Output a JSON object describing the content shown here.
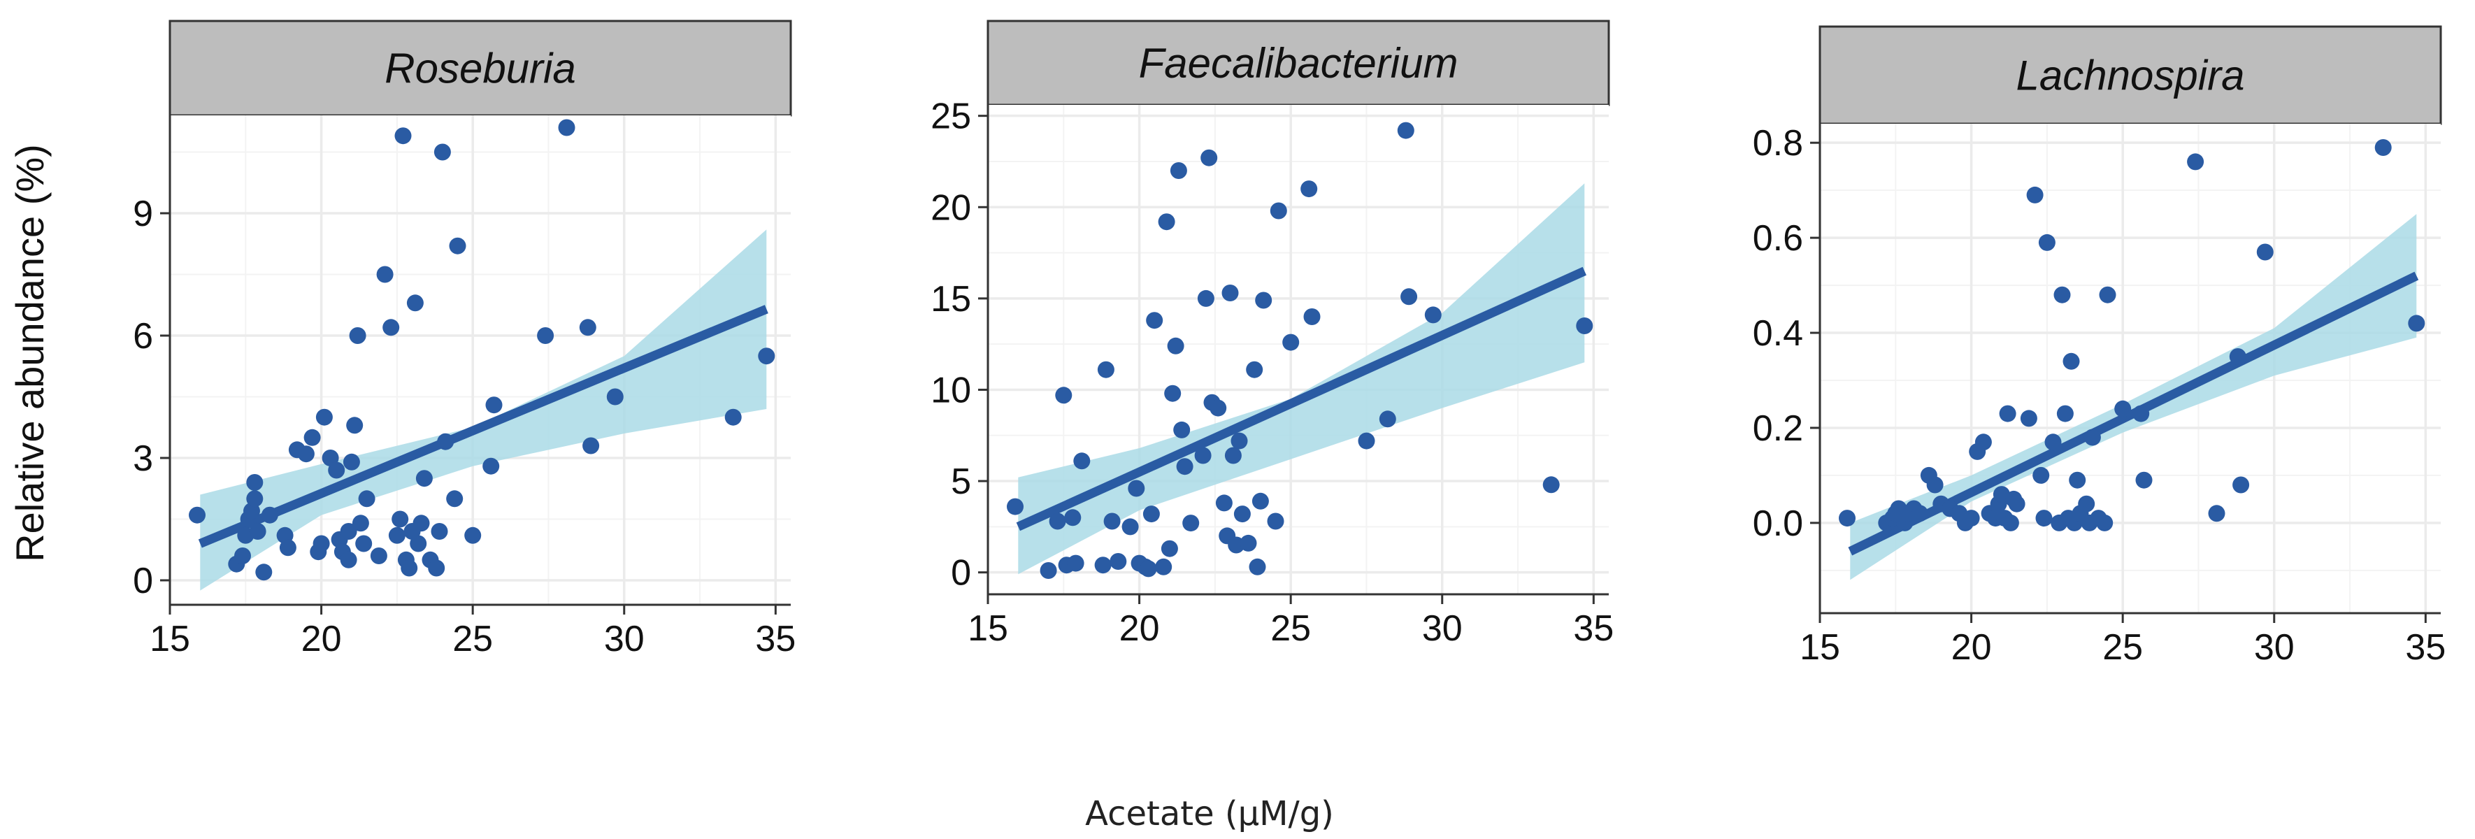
{
  "figure": {
    "ylabel": "Relative abundance (%)",
    "xlabel": "Acetate (µM/g)"
  },
  "colors": {
    "point": "#2a5ba3",
    "line": "#2a5ba3",
    "band": "#aadbe6",
    "strip": "#bdbdbd",
    "grid": "#ebebeb"
  },
  "chart_data": [
    {
      "type": "scatter",
      "title": "Roseburia",
      "xlim": [
        15,
        35.5
      ],
      "ylim": [
        -0.6,
        11.4
      ],
      "xticks": [
        15,
        20,
        25,
        30,
        35
      ],
      "yticks": [
        0,
        3,
        6,
        9
      ],
      "grid": true,
      "fit": {
        "x": [
          16,
          34.7
        ],
        "y": [
          0.9,
          6.65
        ]
      },
      "band": {
        "x": [
          16,
          20,
          25,
          30,
          34.7
        ],
        "upper": [
          2.1,
          2.85,
          3.75,
          5.5,
          8.6
        ],
        "lower": [
          -0.25,
          1.6,
          2.8,
          3.6,
          4.2
        ]
      },
      "points": [
        [
          15.9,
          1.6
        ],
        [
          17.2,
          0.4
        ],
        [
          17.4,
          0.6
        ],
        [
          17.5,
          1.1
        ],
        [
          17.6,
          1.5
        ],
        [
          17.7,
          1.7
        ],
        [
          17.8,
          2.4
        ],
        [
          17.8,
          2.0
        ],
        [
          17.9,
          1.2
        ],
        [
          18.1,
          0.2
        ],
        [
          18.3,
          1.6
        ],
        [
          18.8,
          1.1
        ],
        [
          18.9,
          0.8
        ],
        [
          19.2,
          3.2
        ],
        [
          19.5,
          3.1
        ],
        [
          19.7,
          3.5
        ],
        [
          19.9,
          0.7
        ],
        [
          20.0,
          0.9
        ],
        [
          20.1,
          4.0
        ],
        [
          20.3,
          3.0
        ],
        [
          20.5,
          2.7
        ],
        [
          20.6,
          1.0
        ],
        [
          20.7,
          0.7
        ],
        [
          20.9,
          0.5
        ],
        [
          20.9,
          1.2
        ],
        [
          21.0,
          2.9
        ],
        [
          21.1,
          3.8
        ],
        [
          21.2,
          6.0
        ],
        [
          21.3,
          1.4
        ],
        [
          21.4,
          0.9
        ],
        [
          21.5,
          2.0
        ],
        [
          21.9,
          0.6
        ],
        [
          22.1,
          7.5
        ],
        [
          22.3,
          6.2
        ],
        [
          22.5,
          1.1
        ],
        [
          22.6,
          1.5
        ],
        [
          22.7,
          10.9
        ],
        [
          22.8,
          0.5
        ],
        [
          22.9,
          0.3
        ],
        [
          23.0,
          1.2
        ],
        [
          23.1,
          6.8
        ],
        [
          23.2,
          0.9
        ],
        [
          23.3,
          1.4
        ],
        [
          23.4,
          2.5
        ],
        [
          23.6,
          0.5
        ],
        [
          23.8,
          0.3
        ],
        [
          23.9,
          1.2
        ],
        [
          24.0,
          10.5
        ],
        [
          24.1,
          3.4
        ],
        [
          24.4,
          2.0
        ],
        [
          24.5,
          8.2
        ],
        [
          25.0,
          1.1
        ],
        [
          25.6,
          2.8
        ],
        [
          25.7,
          4.3
        ],
        [
          27.4,
          6.0
        ],
        [
          28.1,
          11.1
        ],
        [
          28.8,
          6.2
        ],
        [
          28.9,
          3.3
        ],
        [
          29.7,
          4.5
        ],
        [
          33.6,
          4.0
        ],
        [
          34.7,
          5.5
        ]
      ]
    },
    {
      "type": "scatter",
      "title": "Faecalibacterium",
      "xlim": [
        15,
        35.5
      ],
      "ylim": [
        -1.2,
        25.6
      ],
      "xticks": [
        15,
        20,
        25,
        30,
        35
      ],
      "yticks": [
        0,
        5,
        10,
        15,
        20,
        25
      ],
      "grid": true,
      "fit": {
        "x": [
          16,
          34.7
        ],
        "y": [
          2.5,
          16.5
        ]
      },
      "band": {
        "x": [
          16,
          20,
          25,
          30,
          34.7
        ],
        "upper": [
          5.2,
          6.8,
          9.5,
          14.2,
          21.3
        ],
        "lower": [
          -0.1,
          3.4,
          6.2,
          9.0,
          11.5
        ]
      },
      "points": [
        [
          15.9,
          3.6
        ],
        [
          17.0,
          0.1
        ],
        [
          17.3,
          2.8
        ],
        [
          17.5,
          9.7
        ],
        [
          17.6,
          0.4
        ],
        [
          17.8,
          3.0
        ],
        [
          17.9,
          0.5
        ],
        [
          18.1,
          6.1
        ],
        [
          18.8,
          0.4
        ],
        [
          18.9,
          11.1
        ],
        [
          19.1,
          2.8
        ],
        [
          19.3,
          0.6
        ],
        [
          19.7,
          2.5
        ],
        [
          19.9,
          4.6
        ],
        [
          20.0,
          0.5
        ],
        [
          20.2,
          0.3
        ],
        [
          20.3,
          0.2
        ],
        [
          20.4,
          3.2
        ],
        [
          20.5,
          13.8
        ],
        [
          20.8,
          0.3
        ],
        [
          20.9,
          19.2
        ],
        [
          21.0,
          1.3
        ],
        [
          21.1,
          9.8
        ],
        [
          21.2,
          12.4
        ],
        [
          21.3,
          22.0
        ],
        [
          21.4,
          7.8
        ],
        [
          21.5,
          5.8
        ],
        [
          21.7,
          2.7
        ],
        [
          22.1,
          6.4
        ],
        [
          22.2,
          15.0
        ],
        [
          22.3,
          22.7
        ],
        [
          22.4,
          9.3
        ],
        [
          22.6,
          9.0
        ],
        [
          22.8,
          3.8
        ],
        [
          22.9,
          2.0
        ],
        [
          23.0,
          15.3
        ],
        [
          23.1,
          6.4
        ],
        [
          23.2,
          1.5
        ],
        [
          23.3,
          7.2
        ],
        [
          23.4,
          3.2
        ],
        [
          23.6,
          1.6
        ],
        [
          23.8,
          11.1
        ],
        [
          23.9,
          0.3
        ],
        [
          24.0,
          3.9
        ],
        [
          24.1,
          14.9
        ],
        [
          24.5,
          2.8
        ],
        [
          24.6,
          19.8
        ],
        [
          25.0,
          12.6
        ],
        [
          25.7,
          14.0
        ],
        [
          25.6,
          21.0
        ],
        [
          27.5,
          7.2
        ],
        [
          28.2,
          8.4
        ],
        [
          28.8,
          24.2
        ],
        [
          28.9,
          15.1
        ],
        [
          29.7,
          14.1
        ],
        [
          33.6,
          4.8
        ],
        [
          34.7,
          13.5
        ]
      ]
    },
    {
      "type": "scatter",
      "title": "Lachnospira",
      "xlim": [
        15,
        35.5
      ],
      "ylim": [
        -0.19,
        0.84
      ],
      "xticks": [
        15,
        20,
        25,
        30,
        35
      ],
      "yticks": [
        0.0,
        0.2,
        0.4,
        0.6,
        0.8
      ],
      "ytick_labels": [
        "0.0",
        "0.2",
        "0.4",
        "0.6",
        "0.8"
      ],
      "grid": true,
      "fit": {
        "x": [
          16,
          34.7
        ],
        "y": [
          -0.06,
          0.52
        ]
      },
      "band": {
        "x": [
          16,
          20,
          25,
          30,
          34.7
        ],
        "upper": [
          0.0,
          0.1,
          0.25,
          0.41,
          0.65
        ],
        "lower": [
          -0.12,
          0.045,
          0.19,
          0.31,
          0.39
        ]
      },
      "points": [
        [
          15.9,
          0.01
        ],
        [
          17.2,
          0.0
        ],
        [
          17.4,
          0.01
        ],
        [
          17.5,
          0.02
        ],
        [
          17.6,
          0.03
        ],
        [
          17.8,
          0.0
        ],
        [
          17.9,
          0.02
        ],
        [
          18.1,
          0.03
        ],
        [
          18.3,
          0.02
        ],
        [
          18.6,
          0.1
        ],
        [
          18.8,
          0.08
        ],
        [
          19.0,
          0.04
        ],
        [
          19.3,
          0.03
        ],
        [
          19.6,
          0.02
        ],
        [
          19.8,
          0.0
        ],
        [
          20.0,
          0.01
        ],
        [
          20.2,
          0.15
        ],
        [
          20.4,
          0.17
        ],
        [
          20.6,
          0.02
        ],
        [
          20.8,
          0.01
        ],
        [
          20.9,
          0.04
        ],
        [
          21.0,
          0.06
        ],
        [
          21.1,
          0.01
        ],
        [
          21.2,
          0.23
        ],
        [
          21.3,
          0.0
        ],
        [
          21.4,
          0.05
        ],
        [
          21.5,
          0.04
        ],
        [
          21.9,
          0.22
        ],
        [
          22.1,
          0.69
        ],
        [
          22.3,
          0.1
        ],
        [
          22.4,
          0.01
        ],
        [
          22.5,
          0.59
        ],
        [
          22.7,
          0.17
        ],
        [
          22.9,
          0.0
        ],
        [
          23.0,
          0.48
        ],
        [
          23.1,
          0.23
        ],
        [
          23.2,
          0.01
        ],
        [
          23.3,
          0.34
        ],
        [
          23.4,
          0.0
        ],
        [
          23.5,
          0.09
        ],
        [
          23.6,
          0.02
        ],
        [
          23.8,
          0.04
        ],
        [
          23.9,
          0.0
        ],
        [
          24.0,
          0.18
        ],
        [
          24.2,
          0.01
        ],
        [
          24.4,
          0.0
        ],
        [
          24.5,
          0.48
        ],
        [
          25.0,
          0.24
        ],
        [
          25.6,
          0.23
        ],
        [
          25.7,
          0.09
        ],
        [
          27.4,
          0.76
        ],
        [
          28.1,
          0.02
        ],
        [
          28.8,
          0.35
        ],
        [
          28.9,
          0.08
        ],
        [
          29.7,
          0.57
        ],
        [
          33.6,
          0.79
        ],
        [
          34.7,
          0.42
        ]
      ]
    }
  ]
}
